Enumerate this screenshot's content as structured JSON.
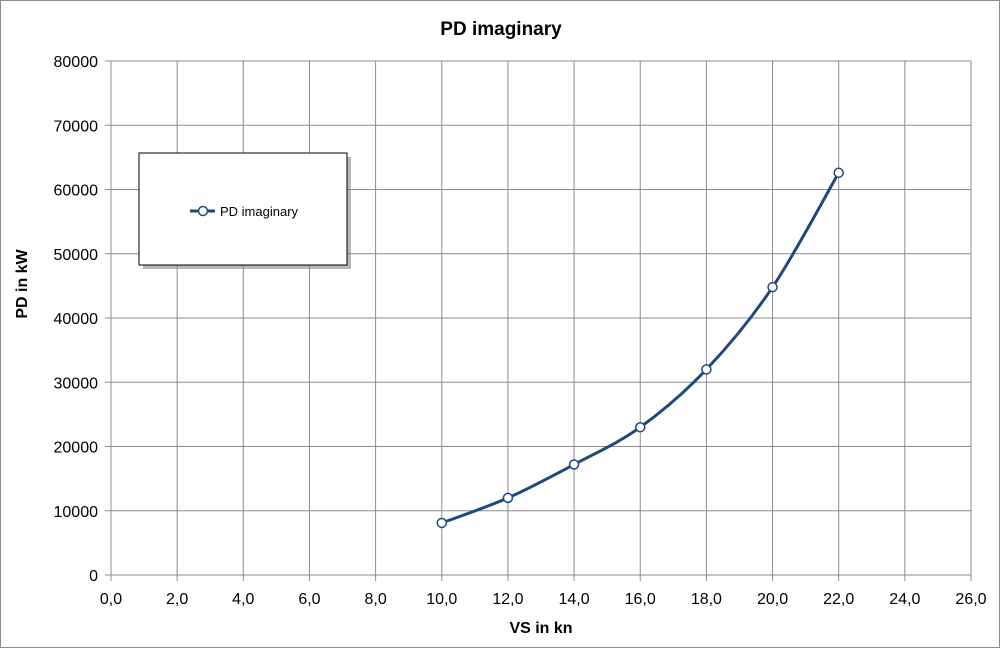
{
  "chart_data": {
    "type": "scatter",
    "title": "PD imaginary",
    "xlabel": "VS in kn",
    "ylabel": "PD in kW",
    "xlim": [
      0,
      26
    ],
    "ylim": [
      0,
      80000
    ],
    "x_ticks": [
      "0,0",
      "2,0",
      "4,0",
      "6,0",
      "8,0",
      "10,0",
      "12,0",
      "14,0",
      "16,0",
      "18,0",
      "20,0",
      "22,0",
      "24,0",
      "26,0"
    ],
    "y_ticks": [
      "0",
      "10000",
      "20000",
      "30000",
      "40000",
      "50000",
      "60000",
      "70000",
      "80000"
    ],
    "grid": true,
    "legend_position": "upper-left",
    "series": [
      {
        "name": "PD imaginary",
        "color": "#1f497d",
        "marker": "open-circle",
        "line": "smooth",
        "x": [
          10,
          12,
          14,
          16,
          18,
          20,
          22
        ],
        "y": [
          8100,
          12000,
          17200,
          23000,
          32000,
          44800,
          62600
        ]
      }
    ]
  }
}
